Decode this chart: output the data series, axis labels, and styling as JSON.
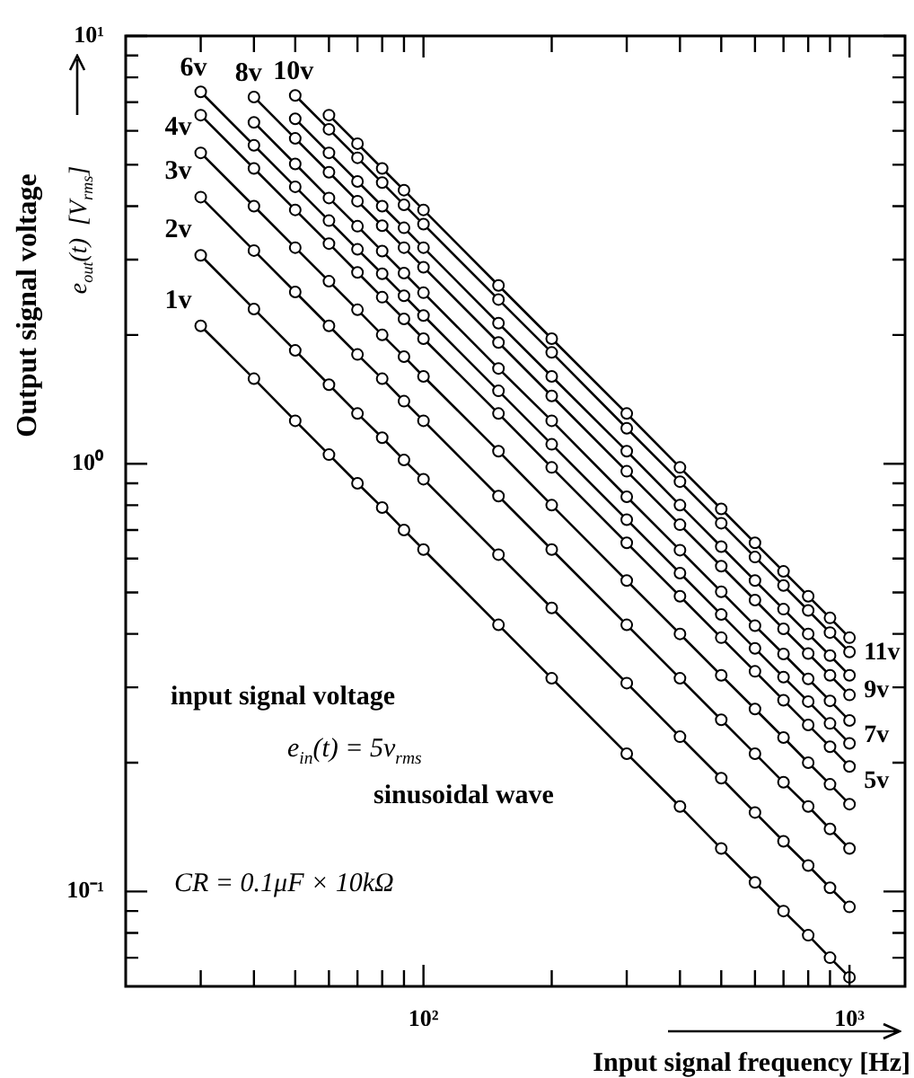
{
  "chart_data": {
    "type": "line",
    "log": "xy",
    "marker": "circle",
    "xlabel": "Input signal frequency [Hz]",
    "ylabel": "Output signal voltage\ne$_{out}$(t)  [V$_{rms}$]",
    "xlim": [
      20,
      1350
    ],
    "ylim": [
      0.06,
      10
    ],
    "xticks": [
      {
        "value": 30,
        "label": null
      },
      {
        "value": 40,
        "label": null
      },
      {
        "value": 50,
        "label": null
      },
      {
        "value": 60,
        "label": null
      },
      {
        "value": 70,
        "label": null
      },
      {
        "value": 80,
        "label": null
      },
      {
        "value": 90,
        "label": null
      },
      {
        "value": 100,
        "label": "10²"
      },
      {
        "value": 200,
        "label": null
      },
      {
        "value": 300,
        "label": null
      },
      {
        "value": 400,
        "label": null
      },
      {
        "value": 500,
        "label": null
      },
      {
        "value": 600,
        "label": null
      },
      {
        "value": 700,
        "label": null
      },
      {
        "value": 800,
        "label": null
      },
      {
        "value": 900,
        "label": null
      },
      {
        "value": 1000,
        "label": "10³"
      }
    ],
    "yticks": [
      {
        "value": 0.07,
        "label": null
      },
      {
        "value": 0.08,
        "label": null
      },
      {
        "value": 0.09,
        "label": null
      },
      {
        "value": 0.1,
        "label": "10⁻¹"
      },
      {
        "value": 0.2,
        "label": null
      },
      {
        "value": 0.3,
        "label": null
      },
      {
        "value": 0.4,
        "label": null
      },
      {
        "value": 0.5,
        "label": null
      },
      {
        "value": 0.6,
        "label": null
      },
      {
        "value": 0.7,
        "label": null
      },
      {
        "value": 0.8,
        "label": null
      },
      {
        "value": 0.9,
        "label": null
      },
      {
        "value": 1,
        "label": "10⁰"
      },
      {
        "value": 2,
        "label": null
      },
      {
        "value": 3,
        "label": null
      },
      {
        "value": 4,
        "label": null
      },
      {
        "value": 5,
        "label": null
      },
      {
        "value": 6,
        "label": null
      },
      {
        "value": 7,
        "label": null
      },
      {
        "value": 8,
        "label": null
      },
      {
        "value": 9,
        "label": null
      },
      {
        "value": 10,
        "label": "10¹"
      }
    ],
    "series": [
      {
        "color": "#000000",
        "x": [
          30,
          40,
          50,
          60,
          70,
          80,
          90,
          100,
          150,
          200,
          300,
          400,
          500,
          600,
          700,
          800,
          900,
          1000
        ],
        "values": [
          2.1,
          1.58,
          1.26,
          1.05,
          0.9,
          0.79,
          0.7,
          0.63,
          0.42,
          0.315,
          0.21,
          0.158,
          0.126,
          0.105,
          0.09,
          0.079,
          0.07,
          0.063
        ]
      },
      {
        "color": "#000000",
        "x": [
          30,
          40,
          50,
          60,
          70,
          80,
          90,
          100,
          150,
          200,
          300,
          400,
          500,
          600,
          700,
          800,
          900,
          1000
        ],
        "values": [
          3.07,
          2.3,
          1.84,
          1.53,
          1.31,
          1.15,
          1.02,
          0.92,
          0.613,
          0.46,
          0.307,
          0.23,
          0.184,
          0.153,
          0.131,
          0.115,
          0.102,
          0.092
        ]
      },
      {
        "color": "#000000",
        "x": [
          30,
          40,
          50,
          60,
          70,
          80,
          90,
          100,
          150,
          200,
          300,
          400,
          500,
          600,
          700,
          800,
          900,
          1000
        ],
        "values": [
          4.2,
          3.15,
          2.52,
          2.1,
          1.8,
          1.58,
          1.4,
          1.26,
          0.84,
          0.63,
          0.42,
          0.315,
          0.252,
          0.21,
          0.18,
          0.158,
          0.14,
          0.126
        ]
      },
      {
        "color": "#000000",
        "x": [
          30,
          40,
          50,
          60,
          70,
          80,
          90,
          100,
          150,
          200,
          300,
          400,
          500,
          600,
          700,
          800,
          900,
          1000
        ],
        "values": [
          5.33,
          4,
          3.2,
          2.67,
          2.29,
          2,
          1.78,
          1.6,
          1.07,
          0.8,
          0.533,
          0.4,
          0.32,
          0.267,
          0.229,
          0.2,
          0.178,
          0.16
        ]
      },
      {
        "color": "#000000",
        "x": [
          30,
          40,
          50,
          60,
          70,
          80,
          90,
          100,
          150,
          200,
          300,
          400,
          500,
          600,
          700,
          800,
          900,
          1000
        ],
        "values": [
          6.53,
          4.9,
          3.92,
          3.27,
          2.8,
          2.45,
          2.18,
          1.96,
          1.31,
          0.98,
          0.653,
          0.49,
          0.392,
          0.327,
          0.28,
          0.245,
          0.218,
          0.196
        ]
      },
      {
        "color": "#000000",
        "x": [
          30,
          40,
          50,
          60,
          70,
          80,
          90,
          100,
          150,
          200,
          300,
          400,
          500,
          600,
          700,
          800,
          900,
          1000
        ],
        "values": [
          7.4,
          5.55,
          4.44,
          3.7,
          3.17,
          2.78,
          2.47,
          2.22,
          1.48,
          1.11,
          0.74,
          0.555,
          0.444,
          0.37,
          0.317,
          0.278,
          0.247,
          0.222
        ]
      },
      {
        "color": "#000000",
        "x": [
          40,
          50,
          60,
          70,
          80,
          90,
          100,
          150,
          200,
          300,
          400,
          500,
          600,
          700,
          800,
          900,
          1000
        ],
        "values": [
          6.28,
          5.02,
          4.18,
          3.59,
          3.14,
          2.79,
          2.51,
          1.67,
          1.26,
          0.837,
          0.628,
          0.502,
          0.418,
          0.359,
          0.314,
          0.279,
          0.251
        ]
      },
      {
        "color": "#000000",
        "x": [
          40,
          50,
          60,
          70,
          80,
          90,
          100,
          150,
          200,
          300,
          400,
          500,
          600,
          700,
          800,
          900,
          1000
        ],
        "values": [
          7.2,
          5.76,
          4.8,
          4.11,
          3.6,
          3.2,
          2.88,
          1.92,
          1.44,
          0.96,
          0.72,
          0.576,
          0.48,
          0.411,
          0.36,
          0.32,
          0.288
        ]
      },
      {
        "color": "#000000",
        "x": [
          50,
          60,
          70,
          80,
          90,
          100,
          150,
          200,
          300,
          400,
          500,
          600,
          700,
          800,
          900,
          1000
        ],
        "values": [
          6.4,
          5.33,
          4.57,
          4,
          3.56,
          3.2,
          2.13,
          1.6,
          1.07,
          0.8,
          0.64,
          0.533,
          0.457,
          0.4,
          0.356,
          0.32
        ]
      },
      {
        "color": "#000000",
        "x": [
          50,
          60,
          70,
          80,
          90,
          100,
          150,
          200,
          300,
          400,
          500,
          600,
          700,
          800,
          900,
          1000
        ],
        "values": [
          7.26,
          6.05,
          5.19,
          4.54,
          4.03,
          3.63,
          2.42,
          1.82,
          1.21,
          0.908,
          0.726,
          0.605,
          0.519,
          0.454,
          0.403,
          0.363
        ]
      },
      {
        "color": "#000000",
        "x": [
          60,
          70,
          80,
          90,
          100,
          150,
          200,
          300,
          400,
          500,
          600,
          700,
          800,
          900,
          1000
        ],
        "values": [
          6.53,
          5.6,
          4.9,
          4.36,
          3.92,
          2.61,
          1.96,
          1.31,
          0.98,
          0.784,
          0.653,
          0.56,
          0.49,
          0.436,
          0.392
        ]
      }
    ],
    "annotations": [
      "1v",
      "2v",
      "3v",
      "4v",
      "5v",
      "6v",
      "7v",
      "8v",
      "9v",
      "10v",
      "11v",
      "input signal voltage",
      "e$_{in}$(t) = 5v$_{rms}$",
      "sinusoidal wave",
      "CR = 0.1μF × 10kΩ"
    ]
  }
}
